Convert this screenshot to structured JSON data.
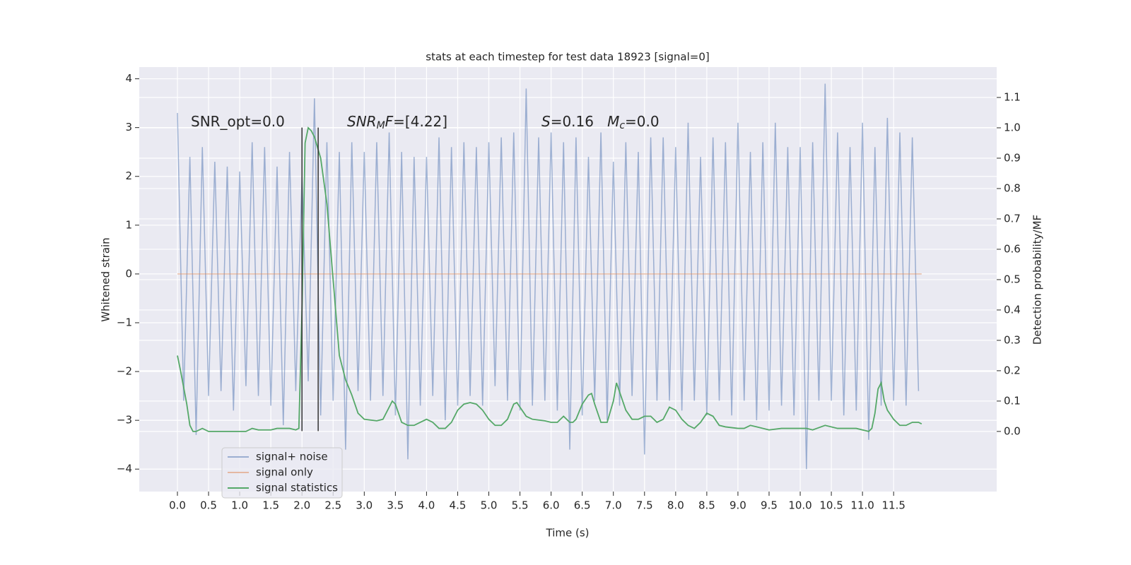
{
  "chart_data": {
    "type": "line",
    "title": "stats at each timestep for test data 18923 [signal=0]",
    "xlabel": "Time (s)",
    "ylabel": "Whitened strain",
    "y2label": "Detection probability/MF",
    "xlim": [
      -0.613,
      13.155
    ],
    "xticks": [
      {
        "value": 0,
        "label": "0.0"
      },
      0.5,
      {
        "value": 1,
        "label": "1.0"
      },
      1.5,
      {
        "value": 2,
        "label": "2.0"
      },
      2.5,
      {
        "value": 3,
        "label": "3.0"
      },
      3.5,
      {
        "value": 4,
        "label": "4.0"
      },
      4.5,
      {
        "value": 5,
        "label": "5.0"
      },
      5.5,
      {
        "value": 6,
        "label": "6.0"
      },
      6.5,
      {
        "value": 7,
        "label": "7.0"
      },
      7.5,
      {
        "value": 8,
        "label": "8.0"
      },
      8.5,
      {
        "value": 9,
        "label": "9.0"
      },
      9.5,
      {
        "value": 10,
        "label": "10.0"
      },
      10.5,
      {
        "value": 11,
        "label": "11.0"
      },
      11.5
    ],
    "ylim": [
      -4.46,
      4.24
    ],
    "yticks": [
      {
        "value": -4,
        "label": "−4"
      },
      {
        "value": -3,
        "label": "−3"
      },
      {
        "value": -2,
        "label": "−2"
      },
      {
        "value": -1,
        "label": "−1"
      },
      0,
      1,
      2,
      3,
      4
    ],
    "y2lim": [
      -0.198,
      1.2
    ],
    "y2ticks": [
      {
        "value": 0,
        "label": "0.0"
      },
      0.1,
      0.2,
      0.3,
      0.4,
      0.5,
      0.6,
      0.7,
      0.8,
      0.9,
      {
        "value": 1,
        "label": "1.0"
      },
      1.1
    ],
    "grid": true,
    "legend": "lower left",
    "annotations": [
      [
        {
          "text": "SNR_opt=0.0"
        }
      ],
      [
        {
          "text": "SNR",
          "italic": true
        },
        {
          "text": "M",
          "italic": true,
          "sub": true
        },
        {
          "text": "F",
          "italic": true
        },
        {
          "text": "=[4.22]"
        }
      ],
      [
        {
          "text": "S",
          "italic": true
        },
        {
          "text": "=0.16   "
        },
        {
          "text": "M",
          "italic": true
        },
        {
          "text": "c",
          "italic": true,
          "sub": true
        },
        {
          "text": "=0.0"
        }
      ]
    ],
    "vlines": {
      "x": [
        2.0,
        2.26
      ],
      "ymin": -3.22,
      "ymax": 3.0,
      "color": "#333333"
    },
    "series": [
      {
        "name": "signal+ noise",
        "color": "#4c72b0",
        "alpha": 0.5,
        "x": [
          0.0,
          0.1,
          0.2,
          0.3,
          0.4,
          0.5,
          0.6,
          0.7,
          0.8,
          0.9,
          1.0,
          1.1,
          1.2,
          1.3,
          1.4,
          1.5,
          1.6,
          1.7,
          1.8,
          1.9,
          2.0,
          2.1,
          2.2,
          2.3,
          2.4,
          2.5,
          2.6,
          2.7,
          2.8,
          2.9,
          3.0,
          3.1,
          3.2,
          3.3,
          3.4,
          3.5,
          3.6,
          3.7,
          3.8,
          3.9,
          4.0,
          4.1,
          4.2,
          4.3,
          4.4,
          4.5,
          4.6,
          4.7,
          4.8,
          4.9,
          5.0,
          5.1,
          5.2,
          5.3,
          5.4,
          5.5,
          5.6,
          5.7,
          5.8,
          5.9,
          6.0,
          6.1,
          6.2,
          6.3,
          6.4,
          6.5,
          6.6,
          6.7,
          6.8,
          6.9,
          7.0,
          7.1,
          7.2,
          7.3,
          7.4,
          7.5,
          7.6,
          7.7,
          7.8,
          7.9,
          8.0,
          8.1,
          8.2,
          8.3,
          8.4,
          8.5,
          8.6,
          8.7,
          8.8,
          8.9,
          9.0,
          9.1,
          9.2,
          9.3,
          9.4,
          9.5,
          9.6,
          9.7,
          9.8,
          9.9,
          10.0,
          10.1,
          10.2,
          10.3,
          10.4,
          10.5,
          10.6,
          10.7,
          10.8,
          10.9,
          11.0,
          11.1,
          11.2,
          11.3,
          11.4,
          11.5,
          11.6,
          11.7,
          11.8,
          11.9
        ],
        "values": [
          3.3,
          -2.6,
          2.4,
          -3.3,
          2.6,
          -2.5,
          2.3,
          -2.4,
          2.2,
          -2.8,
          2.1,
          -2.3,
          2.7,
          -2.5,
          2.6,
          -2.7,
          2.2,
          -3.1,
          2.5,
          -2.4,
          2.0,
          -2.2,
          3.6,
          -2.9,
          2.7,
          -2.6,
          2.5,
          -3.6,
          2.7,
          -2.4,
          2.5,
          -2.6,
          2.7,
          -2.5,
          2.9,
          -2.9,
          2.5,
          -3.8,
          2.4,
          -2.7,
          2.4,
          -2.5,
          2.8,
          -3.0,
          2.6,
          -2.7,
          2.7,
          -2.5,
          2.6,
          -2.7,
          2.7,
          -2.3,
          2.8,
          -2.6,
          2.9,
          -2.8,
          3.8,
          -2.7,
          2.8,
          -2.6,
          2.9,
          -2.8,
          2.7,
          -3.6,
          2.8,
          -2.9,
          2.4,
          -2.6,
          2.9,
          -3.0,
          2.3,
          -2.7,
          2.7,
          -2.5,
          2.5,
          -3.7,
          2.8,
          -2.6,
          2.8,
          -2.6,
          2.6,
          -2.8,
          3.1,
          -2.6,
          2.4,
          -2.9,
          2.8,
          -2.6,
          2.7,
          -2.9,
          3.1,
          -2.6,
          2.5,
          -3.0,
          2.7,
          -2.8,
          3.1,
          -2.7,
          2.6,
          -2.9,
          2.6,
          -4.0,
          2.7,
          -2.6,
          3.9,
          -2.6,
          2.9,
          -2.9,
          2.6,
          -2.8,
          3.1,
          -3.4,
          2.6,
          -2.7,
          3.2,
          -2.6,
          2.9,
          -2.7,
          2.8,
          -2.4
        ]
      },
      {
        "name": "signal only",
        "color": "#dd8452",
        "alpha": 0.5,
        "x": [
          0.0,
          11.95
        ],
        "values": [
          0,
          0
        ]
      },
      {
        "name": "signal statistics",
        "color": "#55a868",
        "alpha": 1,
        "axis": "y2",
        "x": [
          0.0,
          0.05,
          0.15,
          0.2,
          0.25,
          0.3,
          0.4,
          0.5,
          0.6,
          0.8,
          1.0,
          1.1,
          1.2,
          1.3,
          1.5,
          1.6,
          1.8,
          1.9,
          1.95,
          2.0,
          2.05,
          2.1,
          2.15,
          2.2,
          2.3,
          2.4,
          2.5,
          2.6,
          2.7,
          2.8,
          2.9,
          3.0,
          3.2,
          3.3,
          3.4,
          3.45,
          3.5,
          3.6,
          3.7,
          3.8,
          3.9,
          4.0,
          4.1,
          4.2,
          4.3,
          4.4,
          4.5,
          4.6,
          4.7,
          4.8,
          4.9,
          5.0,
          5.1,
          5.2,
          5.3,
          5.4,
          5.45,
          5.5,
          5.6,
          5.7,
          5.9,
          6.0,
          6.1,
          6.2,
          6.3,
          6.35,
          6.4,
          6.5,
          6.6,
          6.65,
          6.7,
          6.8,
          6.9,
          7.0,
          7.05,
          7.1,
          7.2,
          7.3,
          7.4,
          7.5,
          7.6,
          7.7,
          7.8,
          7.9,
          8.0,
          8.1,
          8.2,
          8.3,
          8.4,
          8.5,
          8.6,
          8.7,
          8.8,
          9.0,
          9.1,
          9.2,
          9.3,
          9.5,
          9.7,
          9.9,
          10.1,
          10.2,
          10.4,
          10.6,
          10.9,
          11.1,
          11.15,
          11.2,
          11.25,
          11.3,
          11.35,
          11.4,
          11.5,
          11.6,
          11.7,
          11.8,
          11.9,
          11.95
        ],
        "values": [
          0.25,
          0.2,
          0.09,
          0.02,
          0.0,
          0.0,
          0.01,
          0.0,
          0.0,
          0.0,
          0.0,
          0.0,
          0.01,
          0.005,
          0.005,
          0.01,
          0.01,
          0.005,
          0.01,
          0.4,
          0.95,
          1.0,
          0.99,
          0.97,
          0.9,
          0.75,
          0.5,
          0.25,
          0.17,
          0.12,
          0.06,
          0.04,
          0.035,
          0.04,
          0.08,
          0.1,
          0.09,
          0.03,
          0.02,
          0.02,
          0.03,
          0.04,
          0.03,
          0.01,
          0.01,
          0.03,
          0.07,
          0.09,
          0.095,
          0.09,
          0.07,
          0.04,
          0.02,
          0.02,
          0.04,
          0.09,
          0.095,
          0.08,
          0.05,
          0.04,
          0.035,
          0.03,
          0.03,
          0.05,
          0.03,
          0.03,
          0.04,
          0.09,
          0.12,
          0.125,
          0.09,
          0.03,
          0.03,
          0.1,
          0.16,
          0.13,
          0.07,
          0.04,
          0.04,
          0.05,
          0.05,
          0.03,
          0.04,
          0.08,
          0.07,
          0.04,
          0.02,
          0.01,
          0.03,
          0.06,
          0.05,
          0.02,
          0.015,
          0.01,
          0.01,
          0.02,
          0.015,
          0.005,
          0.01,
          0.01,
          0.01,
          0.005,
          0.02,
          0.01,
          0.01,
          0.0,
          0.01,
          0.06,
          0.14,
          0.16,
          0.1,
          0.07,
          0.04,
          0.02,
          0.02,
          0.03,
          0.03,
          0.025
        ]
      }
    ]
  }
}
